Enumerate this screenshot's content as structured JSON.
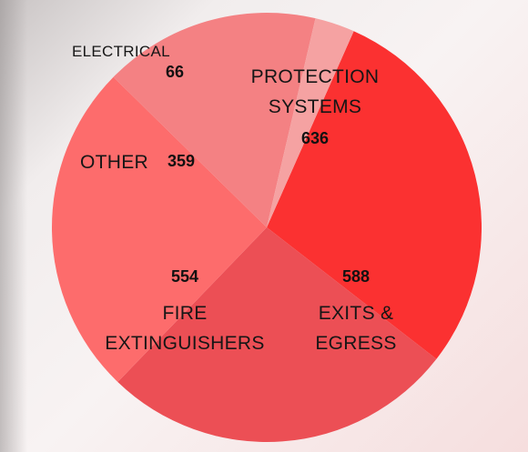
{
  "chart_data": {
    "type": "pie",
    "slices": [
      {
        "label": "PROTECTION SYSTEMS",
        "value": 636,
        "color": "#fb3131"
      },
      {
        "label": "EXITS & EGRESS",
        "value": 588,
        "color": "#ec4f55"
      },
      {
        "label": "FIRE EXTINGUISHERS",
        "value": 554,
        "color": "#fd6c6c"
      },
      {
        "label": "OTHER",
        "value": 359,
        "color": "#f48183"
      },
      {
        "label": "ELECTRICAL",
        "value": 66,
        "color": "#f5a2a2"
      }
    ],
    "value_labels": [
      "636",
      "588",
      "554",
      "359",
      "66"
    ]
  }
}
